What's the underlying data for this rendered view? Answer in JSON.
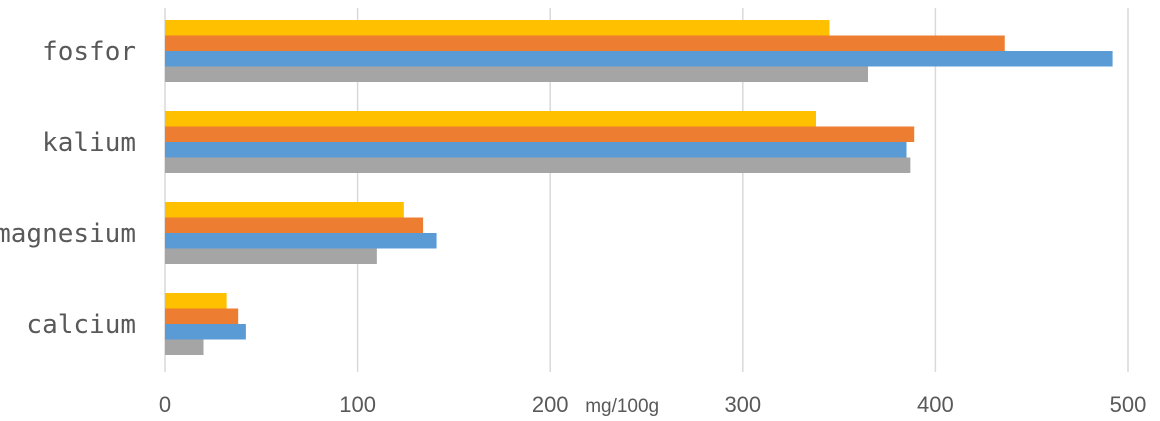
{
  "chart_data": {
    "type": "bar",
    "orientation": "horizontal",
    "categories": [
      "fosfor",
      "kalium",
      "magnesium",
      "calcium"
    ],
    "series": [
      {
        "color": "#FFC000",
        "values": [
          345,
          338,
          124,
          32
        ]
      },
      {
        "color": "#ED7D31",
        "values": [
          436,
          389,
          134,
          38
        ]
      },
      {
        "color": "#5B9BD5",
        "values": [
          492,
          385,
          141,
          42
        ]
      },
      {
        "color": "#A5A5A5",
        "values": [
          365,
          387,
          110,
          20
        ]
      }
    ],
    "xlim": [
      0,
      500
    ],
    "xticks": [
      "0",
      "100",
      "200",
      "300",
      "400",
      "500"
    ],
    "xlabel": "mg/100g",
    "grid": "vertical",
    "legend": "none"
  }
}
